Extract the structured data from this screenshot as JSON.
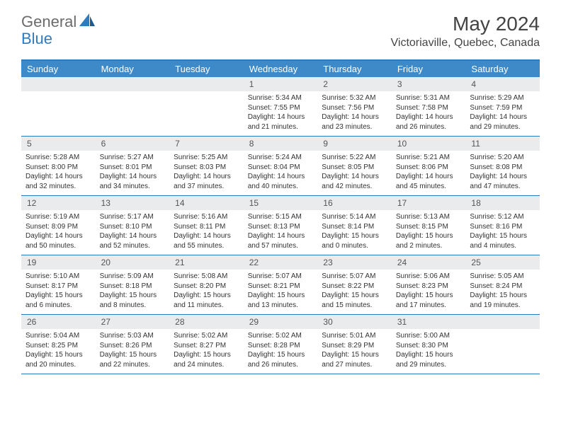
{
  "logo": {
    "part1": "General",
    "part2": "Blue"
  },
  "title": "May 2024",
  "location": "Victoriaville, Quebec, Canada",
  "colors": {
    "header_bg": "#3e8ac8",
    "border": "#2f7bbf",
    "daynum_bg": "#e9ebec",
    "text": "#333333",
    "logo_gray": "#6b6b6b",
    "logo_blue": "#2f7bbf"
  },
  "dayNames": [
    "Sunday",
    "Monday",
    "Tuesday",
    "Wednesday",
    "Thursday",
    "Friday",
    "Saturday"
  ],
  "weeks": [
    [
      {
        "n": "",
        "sunrise": "",
        "sunset": "",
        "daylight": ""
      },
      {
        "n": "",
        "sunrise": "",
        "sunset": "",
        "daylight": ""
      },
      {
        "n": "",
        "sunrise": "",
        "sunset": "",
        "daylight": ""
      },
      {
        "n": "1",
        "sunrise": "Sunrise: 5:34 AM",
        "sunset": "Sunset: 7:55 PM",
        "daylight": "Daylight: 14 hours and 21 minutes."
      },
      {
        "n": "2",
        "sunrise": "Sunrise: 5:32 AM",
        "sunset": "Sunset: 7:56 PM",
        "daylight": "Daylight: 14 hours and 23 minutes."
      },
      {
        "n": "3",
        "sunrise": "Sunrise: 5:31 AM",
        "sunset": "Sunset: 7:58 PM",
        "daylight": "Daylight: 14 hours and 26 minutes."
      },
      {
        "n": "4",
        "sunrise": "Sunrise: 5:29 AM",
        "sunset": "Sunset: 7:59 PM",
        "daylight": "Daylight: 14 hours and 29 minutes."
      }
    ],
    [
      {
        "n": "5",
        "sunrise": "Sunrise: 5:28 AM",
        "sunset": "Sunset: 8:00 PM",
        "daylight": "Daylight: 14 hours and 32 minutes."
      },
      {
        "n": "6",
        "sunrise": "Sunrise: 5:27 AM",
        "sunset": "Sunset: 8:01 PM",
        "daylight": "Daylight: 14 hours and 34 minutes."
      },
      {
        "n": "7",
        "sunrise": "Sunrise: 5:25 AM",
        "sunset": "Sunset: 8:03 PM",
        "daylight": "Daylight: 14 hours and 37 minutes."
      },
      {
        "n": "8",
        "sunrise": "Sunrise: 5:24 AM",
        "sunset": "Sunset: 8:04 PM",
        "daylight": "Daylight: 14 hours and 40 minutes."
      },
      {
        "n": "9",
        "sunrise": "Sunrise: 5:22 AM",
        "sunset": "Sunset: 8:05 PM",
        "daylight": "Daylight: 14 hours and 42 minutes."
      },
      {
        "n": "10",
        "sunrise": "Sunrise: 5:21 AM",
        "sunset": "Sunset: 8:06 PM",
        "daylight": "Daylight: 14 hours and 45 minutes."
      },
      {
        "n": "11",
        "sunrise": "Sunrise: 5:20 AM",
        "sunset": "Sunset: 8:08 PM",
        "daylight": "Daylight: 14 hours and 47 minutes."
      }
    ],
    [
      {
        "n": "12",
        "sunrise": "Sunrise: 5:19 AM",
        "sunset": "Sunset: 8:09 PM",
        "daylight": "Daylight: 14 hours and 50 minutes."
      },
      {
        "n": "13",
        "sunrise": "Sunrise: 5:17 AM",
        "sunset": "Sunset: 8:10 PM",
        "daylight": "Daylight: 14 hours and 52 minutes."
      },
      {
        "n": "14",
        "sunrise": "Sunrise: 5:16 AM",
        "sunset": "Sunset: 8:11 PM",
        "daylight": "Daylight: 14 hours and 55 minutes."
      },
      {
        "n": "15",
        "sunrise": "Sunrise: 5:15 AM",
        "sunset": "Sunset: 8:13 PM",
        "daylight": "Daylight: 14 hours and 57 minutes."
      },
      {
        "n": "16",
        "sunrise": "Sunrise: 5:14 AM",
        "sunset": "Sunset: 8:14 PM",
        "daylight": "Daylight: 15 hours and 0 minutes."
      },
      {
        "n": "17",
        "sunrise": "Sunrise: 5:13 AM",
        "sunset": "Sunset: 8:15 PM",
        "daylight": "Daylight: 15 hours and 2 minutes."
      },
      {
        "n": "18",
        "sunrise": "Sunrise: 5:12 AM",
        "sunset": "Sunset: 8:16 PM",
        "daylight": "Daylight: 15 hours and 4 minutes."
      }
    ],
    [
      {
        "n": "19",
        "sunrise": "Sunrise: 5:10 AM",
        "sunset": "Sunset: 8:17 PM",
        "daylight": "Daylight: 15 hours and 6 minutes."
      },
      {
        "n": "20",
        "sunrise": "Sunrise: 5:09 AM",
        "sunset": "Sunset: 8:18 PM",
        "daylight": "Daylight: 15 hours and 8 minutes."
      },
      {
        "n": "21",
        "sunrise": "Sunrise: 5:08 AM",
        "sunset": "Sunset: 8:20 PM",
        "daylight": "Daylight: 15 hours and 11 minutes."
      },
      {
        "n": "22",
        "sunrise": "Sunrise: 5:07 AM",
        "sunset": "Sunset: 8:21 PM",
        "daylight": "Daylight: 15 hours and 13 minutes."
      },
      {
        "n": "23",
        "sunrise": "Sunrise: 5:07 AM",
        "sunset": "Sunset: 8:22 PM",
        "daylight": "Daylight: 15 hours and 15 minutes."
      },
      {
        "n": "24",
        "sunrise": "Sunrise: 5:06 AM",
        "sunset": "Sunset: 8:23 PM",
        "daylight": "Daylight: 15 hours and 17 minutes."
      },
      {
        "n": "25",
        "sunrise": "Sunrise: 5:05 AM",
        "sunset": "Sunset: 8:24 PM",
        "daylight": "Daylight: 15 hours and 19 minutes."
      }
    ],
    [
      {
        "n": "26",
        "sunrise": "Sunrise: 5:04 AM",
        "sunset": "Sunset: 8:25 PM",
        "daylight": "Daylight: 15 hours and 20 minutes."
      },
      {
        "n": "27",
        "sunrise": "Sunrise: 5:03 AM",
        "sunset": "Sunset: 8:26 PM",
        "daylight": "Daylight: 15 hours and 22 minutes."
      },
      {
        "n": "28",
        "sunrise": "Sunrise: 5:02 AM",
        "sunset": "Sunset: 8:27 PM",
        "daylight": "Daylight: 15 hours and 24 minutes."
      },
      {
        "n": "29",
        "sunrise": "Sunrise: 5:02 AM",
        "sunset": "Sunset: 8:28 PM",
        "daylight": "Daylight: 15 hours and 26 minutes."
      },
      {
        "n": "30",
        "sunrise": "Sunrise: 5:01 AM",
        "sunset": "Sunset: 8:29 PM",
        "daylight": "Daylight: 15 hours and 27 minutes."
      },
      {
        "n": "31",
        "sunrise": "Sunrise: 5:00 AM",
        "sunset": "Sunset: 8:30 PM",
        "daylight": "Daylight: 15 hours and 29 minutes."
      },
      {
        "n": "",
        "sunrise": "",
        "sunset": "",
        "daylight": ""
      }
    ]
  ]
}
